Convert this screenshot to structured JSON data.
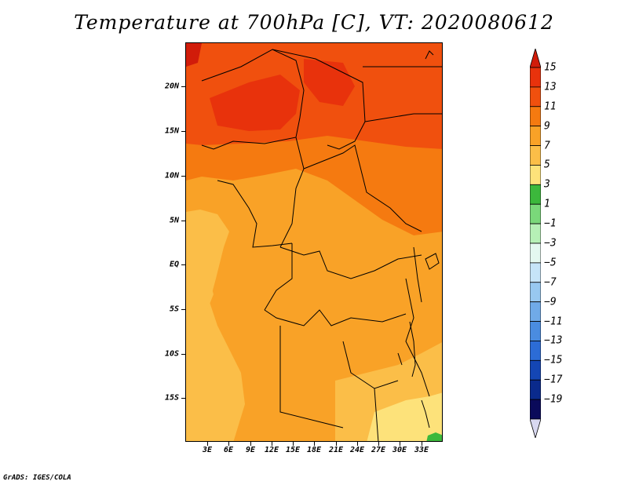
{
  "title": "Temperature at 700hPa [C], VT: 2020080612",
  "credit": "GrADS: IGES/COLA",
  "map": {
    "projection": "lat-lon",
    "lon_range": [
      0,
      36
    ],
    "lat_range": [
      -20,
      24.5
    ],
    "y_ticks": [
      "20N",
      "15N",
      "10N",
      "5N",
      "EQ",
      "5S",
      "10S",
      "15S"
    ],
    "y_tick_values": [
      20,
      15,
      10,
      5,
      0,
      -5,
      -10,
      -15
    ],
    "x_ticks": [
      "3E",
      "6E",
      "9E",
      "12E",
      "15E",
      "18E",
      "21E",
      "24E",
      "27E",
      "30E",
      "33E"
    ],
    "x_tick_values": [
      3,
      6,
      9,
      12,
      15,
      18,
      21,
      24,
      27,
      30,
      33
    ],
    "field": "air temperature at 700 hPa (degrees C)",
    "colors": {
      "c15": "#e8320c",
      "c13": "#f0500e",
      "c11": "#f57a10",
      "c9": "#f9a227",
      "c7": "#fbbe48",
      "c5": "#fde27a"
    }
  },
  "colorbar": {
    "labels": [
      "15",
      "13",
      "11",
      "9",
      "7",
      "5",
      "3",
      "1",
      "−1",
      "−3",
      "−5",
      "−7",
      "−9",
      "−11",
      "−13",
      "−15",
      "−17",
      "−19"
    ],
    "colors": [
      "#d11c0a",
      "#e8320c",
      "#f0500e",
      "#f57a10",
      "#f9a227",
      "#fbbe48",
      "#fde27a",
      "#3cb83c",
      "#7ad87a",
      "#b6f0b6",
      "#e4f8f0",
      "#c6e4f8",
      "#98c8f0",
      "#70aae8",
      "#4a8ce0",
      "#2c6cd6",
      "#1446b4",
      "#0a2a8c",
      "#0a0a5a",
      "#d8d8f0"
    ]
  }
}
